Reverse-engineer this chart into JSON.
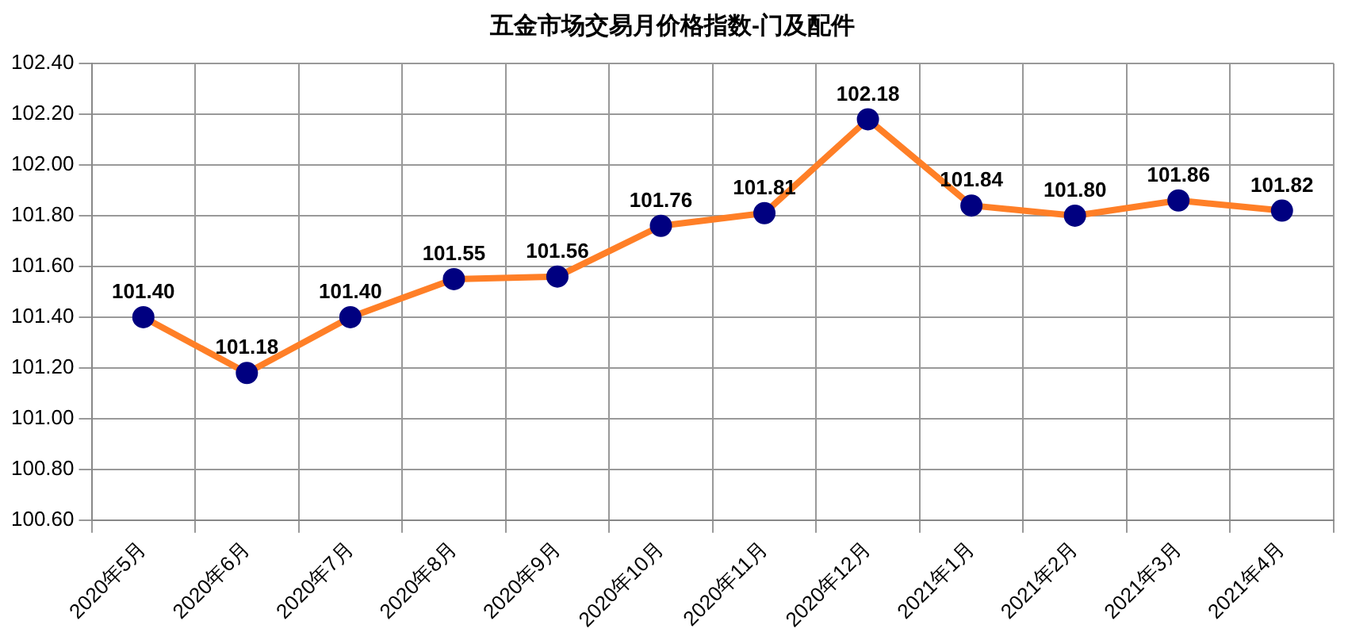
{
  "chart_data": {
    "type": "line",
    "title": "五金市场交易月价格指数-门及配件",
    "categories": [
      "2020年5月",
      "2020年6月",
      "2020年7月",
      "2020年8月",
      "2020年9月",
      "2020年10月",
      "2020年11月",
      "2020年12月",
      "2021年1月",
      "2021年2月",
      "2021年3月",
      "2021年4月"
    ],
    "series": [
      {
        "color": "#ff7f27",
        "colors": [
          "#000080",
          "#000080",
          "#000080",
          "#000080",
          "#000080",
          "#000080",
          "#000080",
          "#000080",
          "#000080",
          "#000080",
          "#000080",
          "#000080"
        ],
        "values": [
          101.4,
          101.18,
          101.4,
          101.55,
          101.56,
          101.76,
          101.81,
          102.18,
          101.84,
          101.8,
          101.86,
          101.82
        ],
        "value_labels": [
          "101.40",
          "101.18",
          "101.40",
          "101.55",
          "101.56",
          "101.76",
          "101.81",
          "102.18",
          "101.84",
          "101.80",
          "101.86",
          "101.82"
        ]
      }
    ],
    "ylim": [
      100.6,
      102.4
    ],
    "yticks": [
      {
        "value": 100.6,
        "label": "100.60"
      },
      {
        "value": 100.8,
        "label": "100.80"
      },
      {
        "value": 101.0,
        "label": "101.00"
      },
      {
        "value": 101.2,
        "label": "101.20"
      },
      {
        "value": 101.4,
        "label": "101.40"
      },
      {
        "value": 101.6,
        "label": "101.60"
      },
      {
        "value": 101.8,
        "label": "101.80"
      },
      {
        "value": 102.0,
        "label": "102.00"
      },
      {
        "value": 102.2,
        "label": "102.20"
      },
      {
        "value": 102.4,
        "label": "102.40"
      }
    ],
    "grid": true,
    "legend": false,
    "marker": "circle",
    "line_style": "solid"
  }
}
